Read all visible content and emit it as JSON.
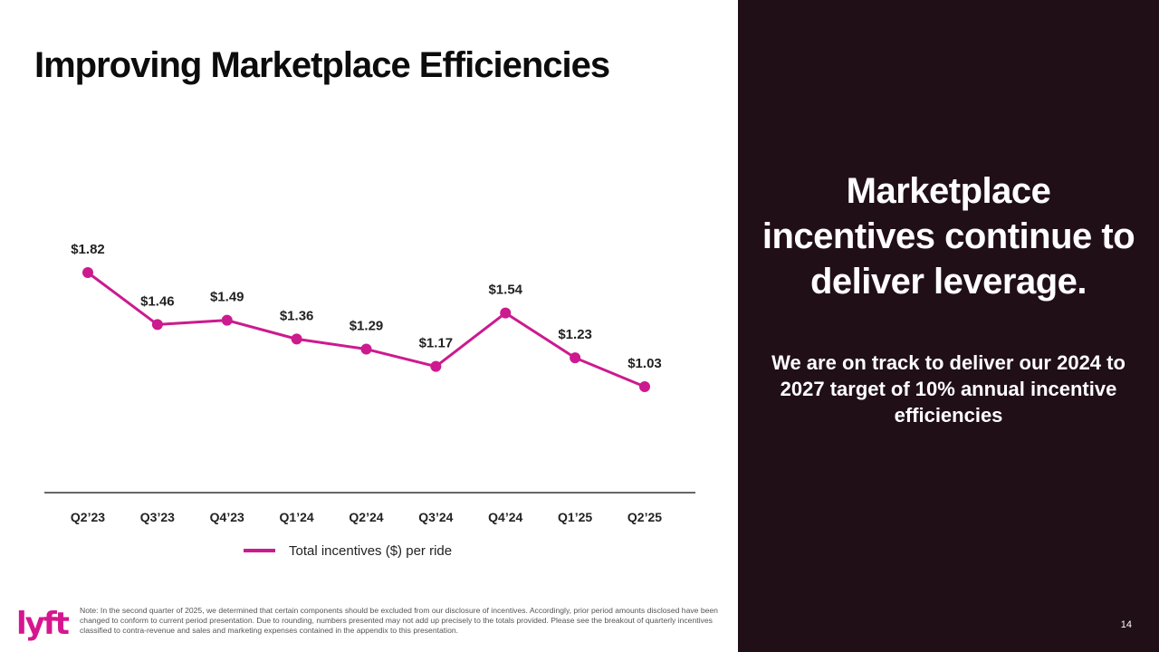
{
  "slide": {
    "title": "Improving Marketplace Efficiencies",
    "page_number": "14",
    "logo_text": "lyft",
    "note": "Note:  In the second quarter of 2025, we determined that certain components should be excluded from our disclosure of incentives. Accordingly, prior period amounts disclosed have been changed to conform to current period presentation. Due to rounding, numbers presented may not add up precisely to the totals provided. Please see the breakout of quarterly incentives classified to contra-revenue and sales and marketing expenses contained in the appendix to this presentation."
  },
  "right_panel": {
    "headline": "Marketplace incentives continue to deliver leverage.",
    "subtext": "We are on track to deliver our 2024 to 2027 target of 10% annual incentive efficiencies"
  },
  "colors": {
    "series": "#cc1a8f",
    "panel_bg": "#210f18",
    "axis": "#333333"
  },
  "chart_data": {
    "type": "line",
    "title": "",
    "categories": [
      "Q2’23",
      "Q3’23",
      "Q4’23",
      "Q1’24",
      "Q2’24",
      "Q3’24",
      "Q4’24",
      "Q1’25",
      "Q2’25"
    ],
    "series": [
      {
        "name": "Total incentives ($) per ride",
        "values": [
          1.82,
          1.46,
          1.49,
          1.36,
          1.29,
          1.17,
          1.54,
          1.23,
          1.03
        ],
        "labels": [
          "$1.82",
          "$1.46",
          "$1.49",
          "$1.36",
          "$1.29",
          "$1.17",
          "$1.54",
          "$1.23",
          "$1.03"
        ]
      }
    ],
    "xlabel": "",
    "ylabel": "",
    "ylim": [
      0,
      2.0
    ],
    "grid": false,
    "legend": "bottom-center"
  }
}
